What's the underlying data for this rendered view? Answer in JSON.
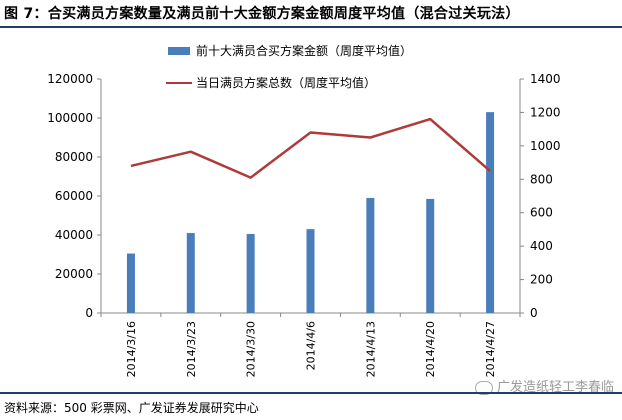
{
  "header": {
    "title": "图 7：合买满员方案数量及满员前十大金额方案金额周度平均值（混合过关玩法）"
  },
  "footer": {
    "source": "资料来源：500 彩票网、广发证券发展研究中心"
  },
  "watermark": "广发造纸轻工李春临",
  "chart_data": {
    "type": "bar",
    "categories": [
      "2014/3/16",
      "2014/3/23",
      "2014/3/30",
      "2014/4/6",
      "2014/4/13",
      "2014/4/20",
      "2014/4/27"
    ],
    "series": [
      {
        "name": "前十大满员合买方案金额（周度平均值）",
        "chart": "bar",
        "axis": "left",
        "color": "#4a7ebb",
        "values": [
          30500,
          41000,
          40500,
          43000,
          59000,
          58500,
          103000
        ]
      },
      {
        "name": "当日满员方案总数（周度平均值）",
        "chart": "line",
        "axis": "right",
        "color": "#b03a3a",
        "values": [
          880,
          965,
          810,
          1080,
          1050,
          1160,
          850
        ]
      }
    ],
    "y_left": {
      "min": 0,
      "max": 120000,
      "ticks": [
        "0",
        "20000",
        "40000",
        "60000",
        "80000",
        "100000",
        "120000"
      ]
    },
    "y_right": {
      "min": 0,
      "max": 1400,
      "ticks": [
        "0",
        "200",
        "400",
        "600",
        "800",
        "1000",
        "1200",
        "1400"
      ]
    },
    "grid": false,
    "legend_position": "top"
  }
}
